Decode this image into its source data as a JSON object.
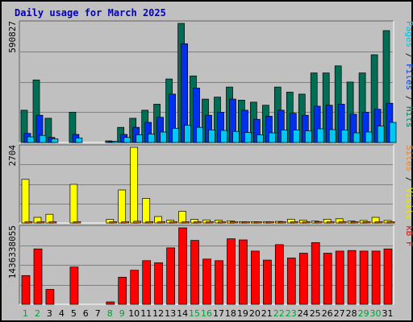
{
  "chart_data": {
    "type": "bar",
    "title": "Daily usage for March 2025",
    "categories": [
      "1",
      "2",
      "3",
      "4",
      "5",
      "6",
      "7",
      "8",
      "9",
      "10",
      "11",
      "12",
      "13",
      "14",
      "15",
      "16",
      "17",
      "18",
      "19",
      "20",
      "21",
      "22",
      "23",
      "24",
      "25",
      "26",
      "27",
      "28",
      "29",
      "30",
      "31"
    ],
    "weekend_days": [
      "1",
      "2",
      "8",
      "9",
      "15",
      "16",
      "22",
      "23",
      "29",
      "30"
    ],
    "grid": true,
    "panels": [
      {
        "name": "traffic",
        "max_label": "590827",
        "ylim": [
          0,
          590827
        ],
        "right_label": [
          {
            "text": "Pages",
            "color": "#00c0e0"
          },
          {
            "text": " / ",
            "color": "#202020"
          },
          {
            "text": "Files",
            "color": "#0040e0"
          },
          {
            "text": " / ",
            "color": "#202020"
          },
          {
            "text": "Hits",
            "color": "#008060"
          }
        ],
        "series": [
          {
            "name": "Hits",
            "color": "#006e54",
            "values": [
              160000,
              310000,
              120000,
              0,
              150000,
              0,
              0,
              8000,
              75000,
              120000,
              160000,
              190000,
              315000,
              590827,
              330000,
              215000,
              225000,
              275000,
              210000,
              200000,
              185000,
              275000,
              250000,
              240000,
              345000,
              345000,
              380000,
              300000,
              345000,
              435000,
              555000
            ]
          },
          {
            "name": "Files",
            "color": "#0030ee",
            "values": [
              45000,
              135000,
              25000,
              0,
              40000,
              0,
              0,
              4000,
              40000,
              75000,
              100000,
              125000,
              240000,
              490000,
              270000,
              135000,
              150000,
              215000,
              160000,
              115000,
              130000,
              160000,
              145000,
              135000,
              180000,
              185000,
              190000,
              140000,
              150000,
              165000,
              195000
            ]
          },
          {
            "name": "Pages",
            "color": "#00c8f4",
            "values": [
              28000,
              35000,
              18000,
              0,
              22000,
              0,
              0,
              3000,
              25000,
              38000,
              42000,
              52000,
              70000,
              85000,
              75000,
              62000,
              60000,
              55000,
              50000,
              38000,
              48000,
              62000,
              62000,
              58000,
              68000,
              64000,
              62000,
              48000,
              52000,
              82000,
              100000
            ]
          }
        ]
      },
      {
        "name": "visits",
        "max_label": "2704",
        "ylim": [
          0,
          2704
        ],
        "right_label": [
          {
            "text": "Sites",
            "color": "#f08020"
          },
          {
            "text": " / ",
            "color": "#202020"
          },
          {
            "text": "Visits",
            "color": "#e8e800"
          }
        ],
        "series": [
          {
            "name": "Visits",
            "color": "#ffff00",
            "values": [
              1560,
              200,
              310,
              0,
              1380,
              0,
              0,
              130,
              1180,
              2704,
              880,
              230,
              100,
              420,
              130,
              110,
              100,
              75,
              40,
              35,
              35,
              55,
              135,
              100,
              65,
              135,
              150,
              65,
              90,
              200,
              90
            ]
          },
          {
            "name": "Sites",
            "color": "#f08020",
            "values": [
              40,
              30,
              30,
              0,
              35,
              0,
              0,
              20,
              40,
              60,
              45,
              35,
              30,
              40,
              30,
              30,
              25,
              20,
              15,
              15,
              15,
              20,
              30,
              25,
              20,
              30,
              30,
              20,
              25,
              35,
              25
            ]
          }
        ]
      },
      {
        "name": "kbytes",
        "max_label": "1436338055",
        "ylim": [
          0,
          1436338055
        ],
        "right_label": [
          {
            "text": "kB F",
            "color": "#e01010"
          }
        ],
        "series": [
          {
            "name": "kB F",
            "color": "#ff0000",
            "values": [
              540000000,
              1040000000,
              280000000,
              0,
              700000000,
              0,
              0,
              45000000,
              510000000,
              640000000,
              820000000,
              780000000,
              1060000000,
              1436338055,
              1200000000,
              850000000,
              820000000,
              1230000000,
              1210000000,
              1000000000,
              830000000,
              1120000000,
              870000000,
              960000000,
              1160000000,
              960000000,
              1000000000,
              1010000000,
              1000000000,
              1000000000,
              1040000000
            ]
          }
        ]
      }
    ]
  }
}
